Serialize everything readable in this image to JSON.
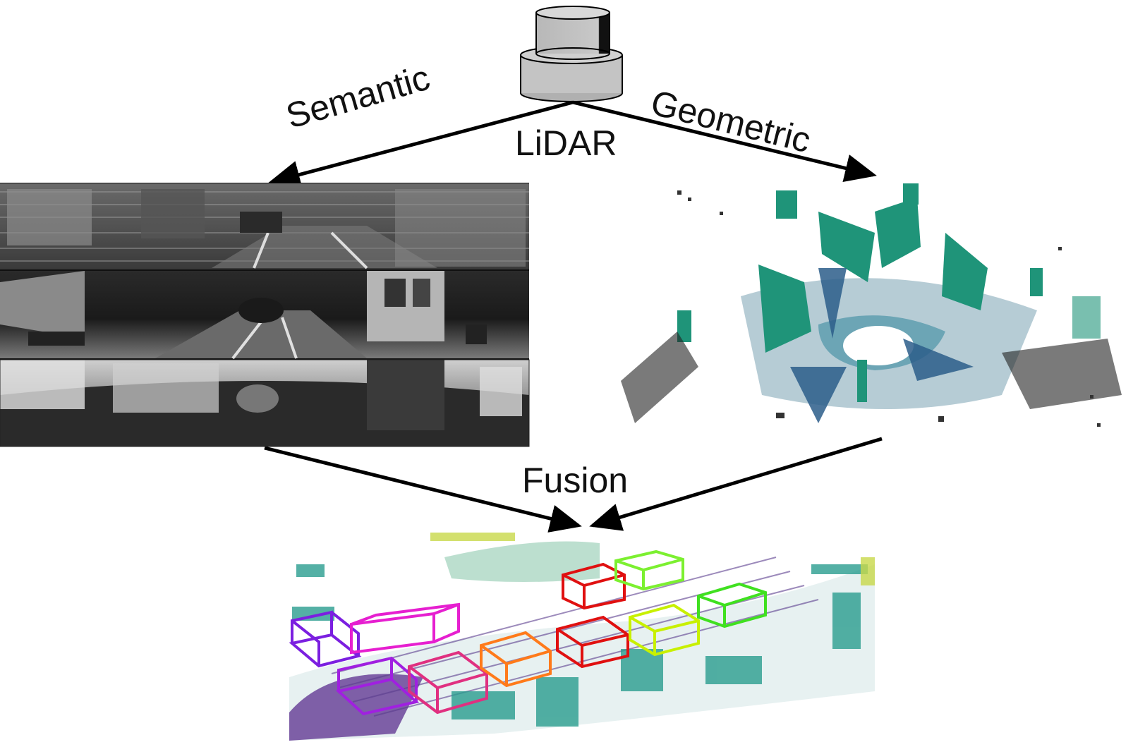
{
  "labels": {
    "semantic": "Semantic",
    "geometric": "Geometric",
    "lidar": "LiDAR",
    "fusion": "Fusion"
  },
  "colors": {
    "arrow": "#000000",
    "sensor_body": "#c0c0c0",
    "geometric_points": "#1f8f7a",
    "box_colors": [
      "#7b1fe0",
      "#e61fd0",
      "#e03080",
      "#ff7a1a",
      "#e01010",
      "#c8f000",
      "#40e020",
      "#7cf030"
    ]
  },
  "icons": {
    "sensor": "lidar-sensor-icon"
  }
}
